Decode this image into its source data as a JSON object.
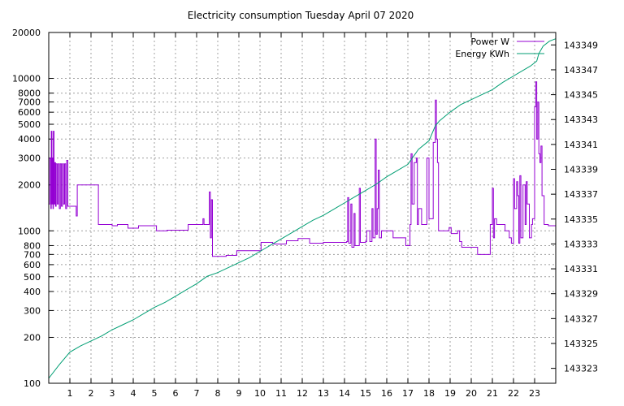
{
  "chart_data": {
    "type": "line",
    "title": "Electricity consumption Tuesday April 07 2020",
    "legend_position": "top-right",
    "grid": true,
    "x_axis": {
      "range": [
        0,
        24
      ],
      "ticks": [
        1,
        2,
        3,
        4,
        5,
        6,
        7,
        8,
        9,
        10,
        11,
        12,
        13,
        14,
        15,
        16,
        17,
        18,
        19,
        20,
        21,
        22,
        23
      ]
    },
    "y_axis_left": {
      "scale": "log",
      "range": [
        100,
        20000
      ],
      "ticks": [
        100,
        200,
        300,
        400,
        500,
        600,
        700,
        800,
        1000,
        2000,
        3000,
        4000,
        5000,
        6000,
        7000,
        8000,
        10000,
        20000
      ]
    },
    "y_axis_right": {
      "scale": "linear",
      "range": [
        143321.8,
        143350.0
      ],
      "ticks": [
        143323,
        143325,
        143327,
        143329,
        143331,
        143333,
        143335,
        143337,
        143339,
        143341,
        143343,
        143345,
        143347,
        143349
      ]
    },
    "series": [
      {
        "name": "Power W",
        "axis": "left",
        "style": "steps",
        "color": "#9400d3",
        "points": [
          [
            0.0,
            1500
          ],
          [
            0.05,
            3000
          ],
          [
            0.1,
            1400
          ],
          [
            0.12,
            4500
          ],
          [
            0.15,
            1500
          ],
          [
            0.18,
            3000
          ],
          [
            0.2,
            1400
          ],
          [
            0.22,
            4500
          ],
          [
            0.25,
            1500
          ],
          [
            0.28,
            2800
          ],
          [
            0.32,
            1450
          ],
          [
            0.35,
            2750
          ],
          [
            0.4,
            1500
          ],
          [
            0.45,
            2750
          ],
          [
            0.5,
            1400
          ],
          [
            0.55,
            2750
          ],
          [
            0.6,
            1450
          ],
          [
            0.65,
            2750
          ],
          [
            0.7,
            1500
          ],
          [
            0.75,
            2750
          ],
          [
            0.8,
            1400
          ],
          [
            0.85,
            2900
          ],
          [
            0.9,
            1450
          ],
          [
            1.3,
            1250
          ],
          [
            1.35,
            2000
          ],
          [
            2.35,
            1100
          ],
          [
            3.0,
            1080
          ],
          [
            3.25,
            1100
          ],
          [
            3.75,
            1040
          ],
          [
            4.25,
            1080
          ],
          [
            5.1,
            1000
          ],
          [
            5.6,
            1010
          ],
          [
            6.6,
            1100
          ],
          [
            7.3,
            1200
          ],
          [
            7.35,
            1100
          ],
          [
            7.6,
            1800
          ],
          [
            7.65,
            900
          ],
          [
            7.7,
            1600
          ],
          [
            7.75,
            680
          ],
          [
            8.4,
            690
          ],
          [
            8.9,
            740
          ],
          [
            10.05,
            840
          ],
          [
            10.6,
            820
          ],
          [
            11.25,
            860
          ],
          [
            11.8,
            890
          ],
          [
            12.35,
            830
          ],
          [
            13.0,
            840
          ],
          [
            14.1,
            850
          ],
          [
            14.15,
            1650
          ],
          [
            14.2,
            830
          ],
          [
            14.3,
            1500
          ],
          [
            14.35,
            780
          ],
          [
            14.45,
            1300
          ],
          [
            14.5,
            800
          ],
          [
            14.7,
            1900
          ],
          [
            14.75,
            840
          ],
          [
            15.0,
            850
          ],
          [
            15.05,
            1000
          ],
          [
            15.2,
            850
          ],
          [
            15.3,
            1400
          ],
          [
            15.35,
            900
          ],
          [
            15.45,
            4000
          ],
          [
            15.5,
            950
          ],
          [
            15.55,
            1400
          ],
          [
            15.6,
            2500
          ],
          [
            15.65,
            900
          ],
          [
            15.75,
            1000
          ],
          [
            16.3,
            900
          ],
          [
            16.9,
            800
          ],
          [
            17.1,
            1100
          ],
          [
            17.15,
            3200
          ],
          [
            17.2,
            1500
          ],
          [
            17.3,
            2800
          ],
          [
            17.4,
            3000
          ],
          [
            17.45,
            1100
          ],
          [
            17.5,
            1400
          ],
          [
            17.65,
            1100
          ],
          [
            17.9,
            3000
          ],
          [
            18.0,
            1200
          ],
          [
            18.2,
            3800
          ],
          [
            18.3,
            7200
          ],
          [
            18.35,
            4000
          ],
          [
            18.4,
            2800
          ],
          [
            18.45,
            1000
          ],
          [
            18.95,
            1050
          ],
          [
            19.05,
            960
          ],
          [
            19.35,
            1000
          ],
          [
            19.45,
            850
          ],
          [
            19.55,
            780
          ],
          [
            20.3,
            700
          ],
          [
            20.9,
            1100
          ],
          [
            21.0,
            1900
          ],
          [
            21.05,
            900
          ],
          [
            21.1,
            1200
          ],
          [
            21.2,
            1100
          ],
          [
            21.35,
            1100
          ],
          [
            21.6,
            1000
          ],
          [
            21.8,
            900
          ],
          [
            21.9,
            830
          ],
          [
            22.0,
            2200
          ],
          [
            22.05,
            1400
          ],
          [
            22.15,
            2100
          ],
          [
            22.2,
            1700
          ],
          [
            22.25,
            830
          ],
          [
            22.3,
            2300
          ],
          [
            22.35,
            900
          ],
          [
            22.45,
            2000
          ],
          [
            22.55,
            1100
          ],
          [
            22.6,
            2100
          ],
          [
            22.65,
            1500
          ],
          [
            22.75,
            900
          ],
          [
            22.85,
            1100
          ],
          [
            22.9,
            1200
          ],
          [
            23.0,
            6500
          ],
          [
            23.05,
            9500
          ],
          [
            23.1,
            4000
          ],
          [
            23.15,
            7000
          ],
          [
            23.2,
            3200
          ],
          [
            23.25,
            2800
          ],
          [
            23.3,
            3600
          ],
          [
            23.35,
            1700
          ],
          [
            23.45,
            1100
          ],
          [
            23.65,
            1080
          ],
          [
            24.0,
            1080
          ]
        ]
      },
      {
        "name": "Energy KWh",
        "axis": "right",
        "style": "line",
        "color": "#009e73",
        "points": [
          [
            0.0,
            143322.2
          ],
          [
            0.5,
            143323.3
          ],
          [
            1.0,
            143324.3
          ],
          [
            1.5,
            143324.8
          ],
          [
            2.0,
            143325.2
          ],
          [
            2.5,
            143325.6
          ],
          [
            3.0,
            143326.1
          ],
          [
            3.5,
            143326.5
          ],
          [
            4.0,
            143326.9
          ],
          [
            4.5,
            143327.4
          ],
          [
            5.0,
            143327.9
          ],
          [
            5.5,
            143328.3
          ],
          [
            6.0,
            143328.8
          ],
          [
            6.5,
            143329.3
          ],
          [
            7.0,
            143329.8
          ],
          [
            7.5,
            143330.4
          ],
          [
            8.0,
            143330.7
          ],
          [
            8.5,
            143331.1
          ],
          [
            9.0,
            143331.5
          ],
          [
            9.5,
            143331.9
          ],
          [
            10.0,
            143332.4
          ],
          [
            10.5,
            143332.9
          ],
          [
            11.0,
            143333.4
          ],
          [
            11.5,
            143333.9
          ],
          [
            12.0,
            143334.4
          ],
          [
            12.5,
            143334.9
          ],
          [
            13.0,
            143335.3
          ],
          [
            13.5,
            143335.8
          ],
          [
            14.0,
            143336.3
          ],
          [
            14.5,
            143336.8
          ],
          [
            15.0,
            143337.3
          ],
          [
            15.5,
            143337.8
          ],
          [
            16.0,
            143338.4
          ],
          [
            16.5,
            143338.9
          ],
          [
            17.0,
            143339.4
          ],
          [
            17.25,
            143340.0
          ],
          [
            17.5,
            143340.6
          ],
          [
            18.0,
            143341.3
          ],
          [
            18.3,
            143342.5
          ],
          [
            18.5,
            143342.9
          ],
          [
            19.0,
            143343.6
          ],
          [
            19.5,
            143344.2
          ],
          [
            20.0,
            143344.6
          ],
          [
            20.5,
            143345.0
          ],
          [
            21.0,
            143345.4
          ],
          [
            21.5,
            143346.0
          ],
          [
            22.0,
            143346.5
          ],
          [
            22.5,
            143347.0
          ],
          [
            22.8,
            143347.3
          ],
          [
            23.1,
            143347.7
          ],
          [
            23.2,
            143348.3
          ],
          [
            23.4,
            143348.9
          ],
          [
            23.7,
            143349.3
          ],
          [
            24.0,
            143349.5
          ]
        ]
      }
    ]
  }
}
